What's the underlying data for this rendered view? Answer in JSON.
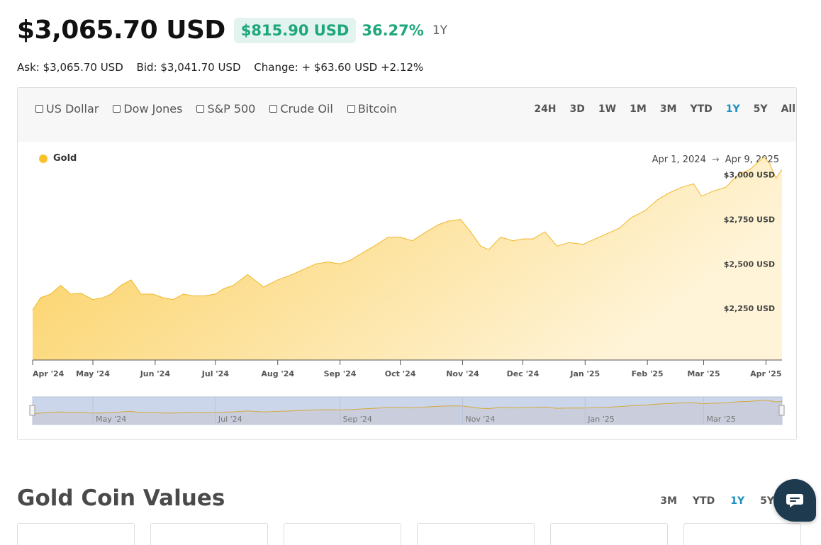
{
  "header": {
    "price": "$3,065.70 USD",
    "change_amount": "$815.90 USD",
    "change_percent": "36.27%",
    "change_period": "1Y"
  },
  "stats": {
    "ask": "Ask: $3,065.70 USD",
    "bid": "Bid: $3,041.70 USD",
    "change": "Change: + $63.60 USD +2.12%"
  },
  "compare": [
    "US Dollar",
    "Dow Jones",
    "S&P 500",
    "Crude Oil",
    "Bitcoin"
  ],
  "ranges": [
    "24H",
    "3D",
    "1W",
    "1M",
    "3M",
    "YTD",
    "1Y",
    "5Y",
    "All"
  ],
  "active_range": "1Y",
  "legend_label": "Gold",
  "date_range": {
    "start": "Apr 1, 2024",
    "end": "Apr 9, 2025",
    "arrow": "→"
  },
  "section": {
    "title": "Gold Coin Values",
    "ranges": [
      "3M",
      "YTD",
      "1Y",
      "5Y"
    ],
    "active_range": "1Y"
  },
  "colors": {
    "gold": "#f9c22d",
    "positive": "#1ea67c",
    "active": "#1b8fc0",
    "navigator": "#ccd6ea"
  },
  "chart_data": {
    "type": "area",
    "title": "",
    "xlabel": "",
    "ylabel": "",
    "series": [
      {
        "name": "Gold",
        "x": [
          "2024-04-01",
          "2024-04-05",
          "2024-04-10",
          "2024-04-15",
          "2024-04-20",
          "2024-04-25",
          "2024-05-01",
          "2024-05-06",
          "2024-05-10",
          "2024-05-15",
          "2024-05-20",
          "2024-05-25",
          "2024-05-31",
          "2024-06-05",
          "2024-06-10",
          "2024-06-15",
          "2024-06-20",
          "2024-06-25",
          "2024-07-01",
          "2024-07-05",
          "2024-07-10",
          "2024-07-17",
          "2024-07-25",
          "2024-08-01",
          "2024-08-06",
          "2024-08-12",
          "2024-08-20",
          "2024-08-26",
          "2024-09-01",
          "2024-09-06",
          "2024-09-12",
          "2024-09-18",
          "2024-09-25",
          "2024-10-01",
          "2024-10-07",
          "2024-10-14",
          "2024-10-20",
          "2024-10-25",
          "2024-10-31",
          "2024-11-05",
          "2024-11-10",
          "2024-11-14",
          "2024-11-20",
          "2024-11-26",
          "2024-12-01",
          "2024-12-06",
          "2024-12-12",
          "2024-12-18",
          "2024-12-24",
          "2024-12-31",
          "2025-01-06",
          "2025-01-12",
          "2025-01-18",
          "2025-01-24",
          "2025-01-31",
          "2025-02-06",
          "2025-02-12",
          "2025-02-18",
          "2025-02-24",
          "2025-02-28",
          "2025-03-06",
          "2025-03-12",
          "2025-03-18",
          "2025-03-24",
          "2025-03-31",
          "2025-04-03",
          "2025-04-06",
          "2025-04-09"
        ],
        "values": [
          2240,
          2310,
          2330,
          2380,
          2330,
          2335,
          2300,
          2310,
          2330,
          2380,
          2410,
          2330,
          2330,
          2310,
          2300,
          2330,
          2320,
          2320,
          2330,
          2360,
          2380,
          2440,
          2370,
          2410,
          2430,
          2460,
          2500,
          2510,
          2500,
          2520,
          2560,
          2600,
          2650,
          2650,
          2630,
          2680,
          2720,
          2740,
          2750,
          2680,
          2600,
          2580,
          2650,
          2630,
          2640,
          2640,
          2680,
          2600,
          2620,
          2610,
          2640,
          2670,
          2700,
          2760,
          2800,
          2860,
          2900,
          2930,
          2950,
          2880,
          2910,
          2930,
          3000,
          3030,
          3100,
          3060,
          2980,
          3030
        ]
      }
    ],
    "y_ticks": [
      "$2,250 USD",
      "$2,500 USD",
      "$2,750 USD",
      "$3,000 USD"
    ],
    "x_ticks": [
      "Apr '24",
      "May '24",
      "Jun '24",
      "Jul '24",
      "Aug '24",
      "Sep '24",
      "Oct '24",
      "Nov '24",
      "Dec '24",
      "Jan '25",
      "Feb '25",
      "Mar '25",
      "Apr '25"
    ],
    "navigator_ticks": [
      "May '24",
      "Jul '24",
      "Sep '24",
      "Nov '24",
      "Jan '25",
      "Mar '25"
    ],
    "ylim": [
      1960,
      3150
    ],
    "grid": false,
    "legend": "top-left"
  }
}
